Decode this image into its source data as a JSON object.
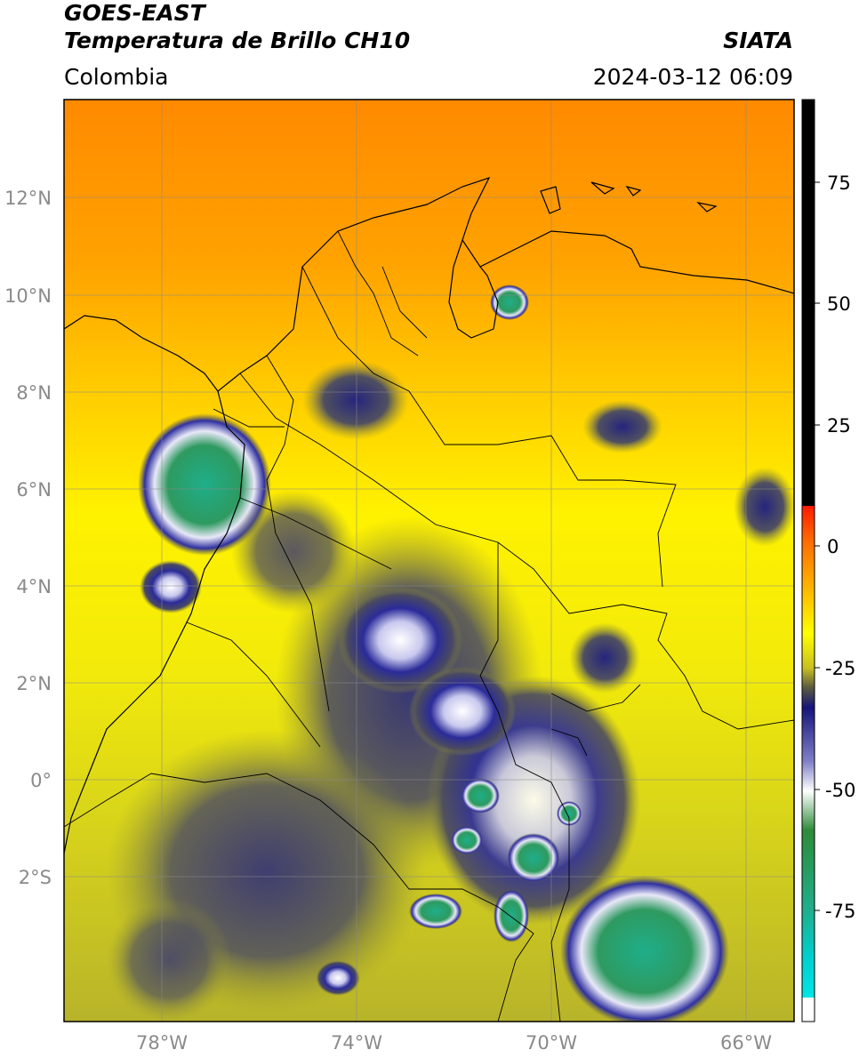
{
  "header": {
    "satellite": "GOES-EAST",
    "product": "Temperatura de Brillo CH10",
    "source": "SIATA",
    "region": "Colombia",
    "datetime": "2024-03-12 06:09"
  },
  "map": {
    "lat_labels": [
      "12°N",
      "10°N",
      "8°N",
      "6°N",
      "4°N",
      "2°N",
      "0°",
      "2°S"
    ],
    "lon_labels": [
      "78°W",
      "74°W",
      "70°W",
      "66°W"
    ]
  },
  "colorbar": {
    "ticks": [
      "75",
      "50",
      "25",
      "0",
      "-25",
      "-50",
      "-75"
    ],
    "colors": {
      "black": "#000000",
      "red": "#ff1a00",
      "orange": "#ff8c00",
      "yellow": "#ffff00",
      "olive": "#7a7a2a",
      "navy": "#15157a",
      "white": "#ffffff",
      "green": "#2e8b3a",
      "teal": "#1fae8a",
      "cyan": "#00e5e5"
    }
  }
}
